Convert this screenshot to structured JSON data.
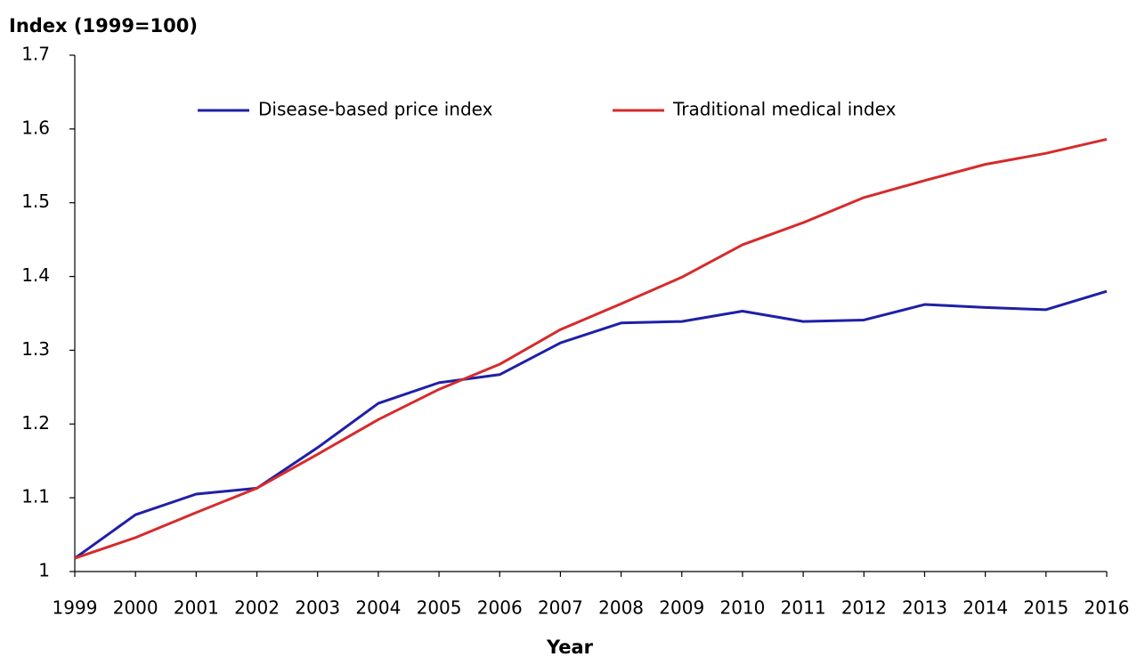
{
  "chart_data": {
    "type": "line",
    "title": "Index (1999=100)",
    "x_label": "Year",
    "categories": [
      "1999",
      "2000",
      "2001",
      "2002",
      "2003",
      "2004",
      "2005",
      "2006",
      "2007",
      "2008",
      "2009",
      "2010",
      "2011",
      "2012",
      "2013",
      "2014",
      "2015",
      "2016"
    ],
    "series": [
      {
        "name": "Disease-based price index",
        "color": "#1f1fa8",
        "values": [
          1.018,
          1.077,
          1.105,
          1.113,
          1.168,
          1.228,
          1.256,
          1.267,
          1.31,
          1.337,
          1.339,
          1.353,
          1.339,
          1.341,
          1.362,
          1.358,
          1.355,
          1.38
        ]
      },
      {
        "name": "Traditional medical index",
        "color": "#d62b2b",
        "values": [
          1.018,
          1.046,
          1.08,
          1.113,
          1.159,
          1.206,
          1.247,
          1.281,
          1.328,
          1.363,
          1.399,
          1.443,
          1.473,
          1.507,
          1.53,
          1.552,
          1.567,
          1.586
        ]
      }
    ],
    "ylim": [
      1,
      1.7
    ],
    "yticks": [
      1,
      1.1,
      1.2,
      1.3,
      1.4,
      1.5,
      1.6,
      1.7
    ],
    "grid": false,
    "legend": "top"
  }
}
